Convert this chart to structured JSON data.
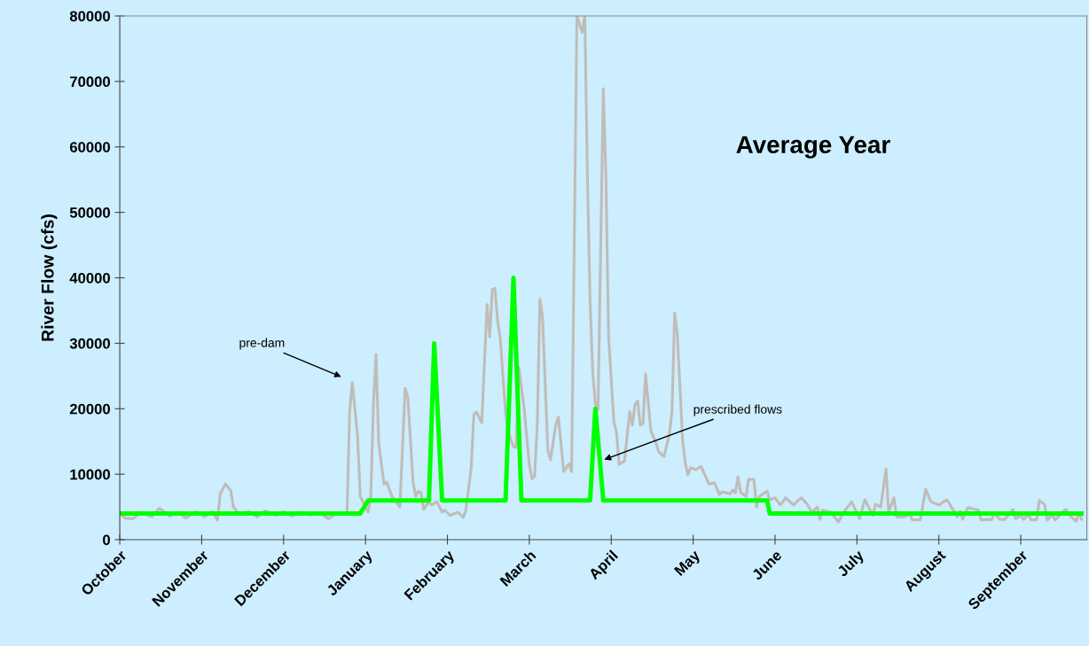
{
  "chart_data": {
    "type": "line",
    "title": "Average Year",
    "ylabel": "River Flow (cfs)",
    "ylim": [
      0,
      80000
    ],
    "yticks": [
      0,
      10000,
      20000,
      30000,
      40000,
      50000,
      60000,
      70000,
      80000
    ],
    "grid": false,
    "legend": false,
    "marker": "none",
    "line_style": "solid",
    "categories": [
      "October",
      null,
      null,
      null,
      null,
      null,
      null,
      null,
      null,
      null,
      null,
      null,
      null,
      null,
      null,
      null,
      null,
      null,
      null,
      null,
      null,
      null,
      null,
      null,
      null,
      null,
      null,
      null,
      null,
      null,
      null,
      "November",
      null,
      null,
      null,
      null,
      null,
      null,
      null,
      null,
      null,
      null,
      null,
      null,
      null,
      null,
      null,
      null,
      null,
      null,
      null,
      null,
      null,
      null,
      null,
      null,
      null,
      null,
      null,
      null,
      null,
      null,
      "December",
      null,
      null,
      null,
      null,
      null,
      null,
      null,
      null,
      null,
      null,
      null,
      null,
      null,
      null,
      null,
      null,
      null,
      null,
      null,
      null,
      null,
      null,
      null,
      null,
      null,
      null,
      null,
      null,
      null,
      null,
      "January",
      null,
      null,
      null,
      null,
      null,
      null,
      null,
      null,
      null,
      null,
      null,
      null,
      null,
      null,
      null,
      null,
      null,
      null,
      null,
      null,
      null,
      null,
      null,
      null,
      null,
      null,
      null,
      null,
      null,
      null,
      "February",
      null,
      null,
      null,
      null,
      null,
      null,
      null,
      null,
      null,
      null,
      null,
      null,
      null,
      null,
      null,
      null,
      null,
      null,
      null,
      null,
      null,
      null,
      null,
      null,
      null,
      null,
      null,
      null,
      null,
      null,
      "March",
      null,
      null,
      null,
      null,
      null,
      null,
      null,
      null,
      null,
      null,
      null,
      null,
      null,
      null,
      null,
      null,
      null,
      null,
      null,
      null,
      null,
      null,
      null,
      null,
      null,
      null,
      null,
      null,
      null,
      null,
      "April",
      null,
      null,
      null,
      null,
      null,
      null,
      null,
      null,
      null,
      null,
      null,
      null,
      null,
      null,
      null,
      null,
      null,
      null,
      null,
      null,
      null,
      null,
      null,
      null,
      null,
      null,
      null,
      null,
      null,
      null,
      "May",
      null,
      null,
      null,
      null,
      null,
      null,
      null,
      null,
      null,
      null,
      null,
      null,
      null,
      null,
      null,
      null,
      null,
      null,
      null,
      null,
      null,
      null,
      null,
      null,
      null,
      null,
      null,
      null,
      null,
      null,
      "June",
      null,
      null,
      null,
      null,
      null,
      null,
      null,
      null,
      null,
      null,
      null,
      null,
      null,
      null,
      null,
      null,
      null,
      null,
      null,
      null,
      null,
      null,
      null,
      null,
      null,
      null,
      null,
      null,
      null,
      null,
      "July",
      null,
      null,
      null,
      null,
      null,
      null,
      null,
      null,
      null,
      null,
      null,
      null,
      null,
      null,
      null,
      null,
      null,
      null,
      null,
      null,
      null,
      null,
      null,
      null,
      null,
      null,
      null,
      null,
      null,
      null,
      "August",
      null,
      null,
      null,
      null,
      null,
      null,
      null,
      null,
      null,
      null,
      null,
      null,
      null,
      null,
      null,
      null,
      null,
      null,
      null,
      null,
      null,
      null,
      null,
      null,
      null,
      null,
      null,
      null,
      null,
      null,
      "September",
      null,
      null,
      null,
      null,
      null,
      null,
      null,
      null,
      null,
      null,
      null,
      null,
      null,
      null,
      null,
      null,
      null,
      null,
      null,
      null,
      null,
      null,
      null
    ],
    "series": [
      {
        "color": "#c0bcb8",
        "values": [
          4000,
          null,
          3300,
          null,
          null,
          3200,
          null,
          null,
          4200,
          null,
          null,
          null,
          3500,
          null,
          null,
          4800,
          null,
          null,
          null,
          3600,
          null,
          null,
          4200,
          null,
          null,
          3300,
          null,
          null,
          null,
          4300,
          null,
          null,
          3500,
          null,
          null,
          4300,
          null,
          3000,
          7000,
          null,
          8500,
          null,
          7500,
          5000,
          null,
          4000,
          null,
          null,
          null,
          4300,
          null,
          null,
          3500,
          null,
          null,
          4400,
          null,
          null,
          null,
          3700,
          null,
          null,
          4300,
          null,
          null,
          3600,
          null,
          null,
          null,
          4200,
          null,
          null,
          3800,
          null,
          null,
          null,
          4000,
          null,
          null,
          3200,
          null,
          null,
          4000,
          null,
          null,
          null,
          4000,
          19600,
          24000,
          null,
          15800,
          6600,
          null,
          null,
          4200,
          6600,
          20700,
          28300,
          14700,
          null,
          8500,
          8800,
          null,
          6600,
          6100,
          null,
          5000,
          null,
          23100,
          21800,
          null,
          8800,
          6600,
          7400,
          7200,
          4600,
          null,
          5800,
          5300,
          null,
          5800,
          null,
          4200,
          4500,
          null,
          3700,
          null,
          null,
          4200,
          null,
          3400,
          4500,
          null,
          11000,
          19100,
          19500,
          null,
          17900,
          null,
          35900,
          31000,
          38200,
          38400,
          33400,
          30700,
          null,
          19400,
          16400,
          null,
          14200,
          14100,
          26300,
          null,
          20200,
          null,
          11500,
          9300,
          9700,
          17500,
          36700,
          34000,
          null,
          13700,
          12200,
          null,
          17500,
          18700,
          14700,
          10400,
          null,
          11600,
          10400,
          44500,
          80000,
          null,
          77500,
          80000,
          55300,
          36400,
          25600,
          20700,
          19900,
          null,
          68900,
          55300,
          31000,
          null,
          18000,
          16400,
          11500,
          null,
          12000,
          null,
          19600,
          17500,
          20700,
          21200,
          17500,
          17700,
          25300,
          null,
          16600,
          null,
          14700,
          13400,
          null,
          12700,
          null,
          16100,
          19600,
          34600,
          31500,
          23400,
          15300,
          11800,
          9900,
          11000,
          null,
          10700,
          null,
          11200,
          null,
          null,
          8500,
          null,
          8700,
          null,
          6900,
          7300,
          null,
          null,
          7000,
          7600,
          7200,
          9600,
          7200,
          null,
          6600,
          9200,
          null,
          9200,
          5000,
          6600,
          null,
          null,
          7400,
          6100,
          null,
          6400,
          null,
          5300,
          null,
          6400,
          null,
          null,
          5300,
          null,
          6100,
          6400,
          null,
          5500,
          null,
          4200,
          null,
          5000,
          3100,
          4500,
          null,
          null,
          4200,
          null,
          null,
          2700,
          null,
          4200,
          null,
          null,
          5800,
          null,
          null,
          3200,
          null,
          6100,
          null,
          null,
          3700,
          5400,
          null,
          5000,
          null,
          10800,
          4200,
          null,
          6400,
          3500,
          null,
          null,
          3500,
          null,
          3900,
          3000,
          null,
          null,
          3000,
          null,
          7700,
          null,
          5800,
          null,
          null,
          5300,
          null,
          null,
          6100,
          5500,
          null,
          null,
          3500,
          4300,
          3100,
          null,
          4900,
          null,
          null,
          null,
          4500,
          3000,
          null,
          null,
          null,
          3100,
          4100,
          null,
          3100,
          null,
          3100,
          null,
          null,
          4600,
          3200,
          null,
          3700,
          3100,
          null,
          3800,
          3000,
          null,
          3000,
          6000,
          null,
          5400,
          3000,
          null,
          3800,
          3000,
          null,
          null,
          4300,
          4600,
          null,
          3500,
          null,
          2800,
          4100,
          3100
        ]
      },
      {
        "color": "#00ff00",
        "values": [
          4000,
          null,
          null,
          null,
          null,
          null,
          null,
          null,
          null,
          null,
          null,
          null,
          null,
          null,
          null,
          null,
          null,
          null,
          null,
          null,
          null,
          null,
          null,
          null,
          null,
          null,
          null,
          null,
          null,
          null,
          null,
          null,
          null,
          null,
          null,
          null,
          null,
          null,
          null,
          null,
          null,
          null,
          null,
          null,
          null,
          null,
          null,
          null,
          null,
          null,
          null,
          null,
          null,
          null,
          null,
          null,
          null,
          null,
          null,
          null,
          null,
          null,
          null,
          null,
          null,
          null,
          null,
          null,
          null,
          null,
          null,
          null,
          null,
          null,
          null,
          null,
          null,
          null,
          null,
          null,
          null,
          null,
          null,
          null,
          null,
          null,
          null,
          null,
          null,
          null,
          null,
          4000,
          null,
          null,
          6000,
          null,
          null,
          null,
          null,
          null,
          null,
          null,
          null,
          null,
          null,
          null,
          null,
          null,
          null,
          null,
          null,
          null,
          null,
          null,
          null,
          null,
          null,
          6000,
          null,
          30000,
          null,
          null,
          6000,
          null,
          null,
          null,
          null,
          null,
          null,
          null,
          null,
          null,
          null,
          null,
          null,
          null,
          null,
          null,
          null,
          null,
          null,
          null,
          null,
          null,
          null,
          null,
          6000,
          null,
          null,
          40000,
          null,
          null,
          6000,
          null,
          null,
          null,
          null,
          null,
          null,
          null,
          null,
          null,
          null,
          null,
          null,
          null,
          null,
          null,
          null,
          null,
          null,
          null,
          null,
          null,
          null,
          null,
          null,
          null,
          6000,
          null,
          20000,
          null,
          null,
          6000,
          null,
          null,
          null,
          null,
          null,
          null,
          null,
          null,
          null,
          null,
          null,
          null,
          null,
          null,
          null,
          null,
          null,
          null,
          null,
          null,
          null,
          null,
          null,
          null,
          null,
          null,
          null,
          null,
          null,
          null,
          null,
          null,
          null,
          null,
          null,
          null,
          null,
          null,
          null,
          null,
          null,
          null,
          null,
          null,
          null,
          null,
          null,
          null,
          null,
          null,
          null,
          null,
          null,
          null,
          null,
          null,
          null,
          null,
          null,
          null,
          null,
          6000,
          4000,
          null,
          null,
          null,
          null,
          null,
          null,
          null,
          null,
          null,
          null,
          null,
          null,
          null,
          null,
          null,
          null,
          null,
          null,
          null,
          null,
          null,
          null,
          null,
          null,
          null,
          null,
          null,
          null,
          null,
          null,
          null,
          null,
          null,
          null,
          null,
          null,
          null,
          null,
          null,
          null,
          null,
          null,
          null,
          null,
          null,
          null,
          null,
          null,
          null,
          null,
          null,
          null,
          null,
          null,
          null,
          null,
          null,
          null,
          null,
          null,
          null,
          null,
          null,
          null,
          null,
          null,
          null,
          null,
          null,
          null,
          null,
          null,
          null,
          null,
          null,
          null,
          null,
          null,
          null,
          null,
          null,
          null,
          null,
          null,
          null,
          null,
          null,
          null,
          null,
          null,
          null,
          null,
          null,
          null,
          null,
          null,
          null,
          null,
          null,
          null,
          null,
          null,
          null,
          null,
          null,
          null,
          null,
          null,
          null,
          null,
          null,
          null,
          null,
          null,
          null,
          null,
          null,
          4000
        ]
      }
    ],
    "annotations": [
      "pre-dam",
      "prescribed flows"
    ]
  }
}
